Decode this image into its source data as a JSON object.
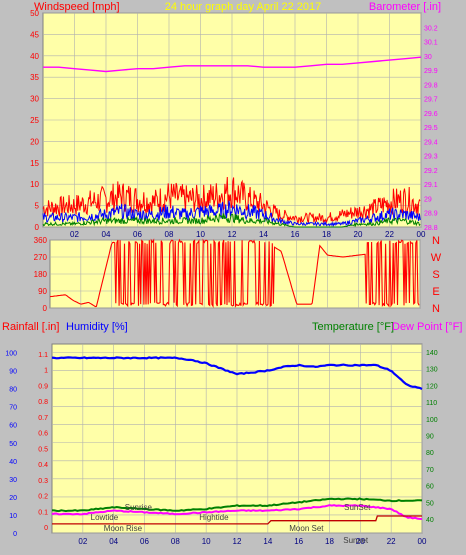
{
  "colors": {
    "background": "#c0c0c0",
    "plot_bg": "#ffffa8",
    "grid": "#b0b0b0",
    "red": "#ff0000",
    "darkred": "#c00000",
    "blue": "#0000ff",
    "green": "#008000",
    "magenta": "#ff00ff",
    "tide": "#808080",
    "title_yellow": "#ffff00"
  },
  "chart_data": [
    {
      "type": "line",
      "id": "wind_baro",
      "title": "24 hour graph day   April 22 2017",
      "ylabel_left": "Windspeed [mph]",
      "ylabel_right": "Barometer [.in]",
      "x_ticks": [
        "02",
        "04",
        "06",
        "08",
        "10",
        "12",
        "14",
        "16",
        "18",
        "20",
        "22",
        "00"
      ],
      "xlim": [
        0,
        24
      ],
      "ylim_left": [
        0,
        50
      ],
      "y_ticks_left": [
        "0",
        "5",
        "10",
        "15",
        "20",
        "25",
        "30",
        "35",
        "40",
        "45",
        "50"
      ],
      "ylim_right": [
        28.8,
        30.3
      ],
      "y_ticks_right": [
        "28.8",
        "28.9",
        "29",
        "29.1",
        "29.2",
        "29.3",
        "29.4",
        "29.5",
        "29.6",
        "29.7",
        "29.8",
        "29.9",
        "30",
        "30.1",
        "30.2"
      ],
      "grid": true,
      "series": [
        {
          "color_key": "magenta",
          "axis": "right",
          "x": [
            0,
            1,
            2,
            3,
            4,
            5,
            6,
            7,
            8,
            9,
            10,
            11,
            12,
            13,
            14,
            15,
            16,
            17,
            18,
            19,
            20,
            21,
            22,
            23,
            24
          ],
          "y": [
            29.92,
            29.92,
            29.91,
            29.9,
            29.89,
            29.9,
            29.91,
            29.91,
            29.92,
            29.93,
            29.93,
            29.93,
            29.93,
            29.93,
            29.92,
            29.92,
            29.92,
            29.93,
            29.94,
            29.94,
            29.95,
            29.96,
            29.97,
            29.98,
            29.99
          ]
        },
        {
          "color_key": "red",
          "axis": "left",
          "x": [
            0,
            2,
            4,
            5,
            6,
            7,
            8,
            9,
            10,
            11,
            12,
            13,
            14,
            15,
            16,
            17,
            18,
            19,
            20,
            21,
            22,
            23,
            24
          ],
          "y": [
            6,
            7,
            9,
            10,
            9,
            8,
            10,
            9,
            9,
            10,
            12,
            9,
            7,
            4,
            3,
            3,
            3,
            4,
            5,
            6,
            8,
            9,
            7
          ]
        },
        {
          "color_key": "blue",
          "axis": "left",
          "x": [
            0,
            2,
            4,
            5,
            6,
            7,
            8,
            9,
            10,
            11,
            12,
            13,
            14,
            15,
            16,
            17,
            18,
            19,
            20,
            21,
            22,
            23,
            24
          ],
          "y": [
            3,
            3,
            4,
            5,
            4,
            4,
            5,
            4,
            5,
            5,
            6,
            5,
            4,
            2,
            1,
            1,
            1,
            1,
            2,
            3,
            4,
            4,
            3
          ]
        },
        {
          "color_key": "green",
          "axis": "left",
          "x": [
            0,
            2,
            4,
            5,
            6,
            7,
            8,
            9,
            10,
            11,
            12,
            13,
            14,
            15,
            16,
            17,
            18,
            19,
            20,
            21,
            22,
            23,
            24
          ],
          "y": [
            1,
            1,
            2,
            2,
            2,
            2,
            2,
            2,
            2,
            3,
            3,
            2,
            2,
            1,
            0,
            0,
            0,
            0,
            1,
            1,
            2,
            2,
            1
          ]
        }
      ]
    },
    {
      "type": "line",
      "id": "wind_dir",
      "ylim": [
        0,
        360
      ],
      "y_ticks": [
        "0",
        "90",
        "180",
        "270",
        "360"
      ],
      "direction_labels": [
        "N",
        "W",
        "S",
        "E",
        "N"
      ],
      "series": [
        {
          "color_key": "red",
          "x": [
            0,
            1,
            1.5,
            2,
            2.5,
            3,
            4,
            5,
            6,
            7,
            8,
            9,
            10,
            11,
            12,
            13,
            14,
            15,
            16,
            17,
            17.5,
            18,
            19,
            20,
            21,
            21.5,
            22,
            23,
            24
          ],
          "y": [
            60,
            70,
            40,
            20,
            30,
            5,
            340,
            20,
            350,
            10,
            340,
            15,
            355,
            30,
            340,
            20,
            350,
            300,
            20,
            20,
            330,
            280,
            270,
            280,
            290,
            10,
            350,
            340,
            350
          ]
        }
      ]
    },
    {
      "type": "line",
      "id": "hum_temp",
      "ylabel_left1": "Rainfall [.in]",
      "ylabel_left2": "Humidity [%]",
      "ylabel_right1": "Temperature [°F]",
      "ylabel_right2": "Dew Point [°F]",
      "x_ticks": [
        "02",
        "04",
        "06",
        "08",
        "10",
        "12",
        "14",
        "16",
        "18",
        "20",
        "22",
        "00"
      ],
      "humidity_ticks": [
        "0",
        "10",
        "20",
        "30",
        "40",
        "50",
        "60",
        "70",
        "80",
        "90",
        "100"
      ],
      "rain_ticks": [
        "0",
        "0.1",
        "0.2",
        "0.3",
        "0.4",
        "0.5",
        "0.6",
        "0.7",
        "0.8",
        "0.9",
        "1",
        "1.1"
      ],
      "temp_ticks": [
        "40",
        "50",
        "60",
        "70",
        "80",
        "90",
        "100",
        "110",
        "120",
        "130",
        "140"
      ],
      "ylim_humidity": [
        0,
        100
      ],
      "ylim_temp": [
        30,
        150
      ],
      "events": [
        {
          "label": "Moon Rise",
          "x": 4.6,
          "row": 3
        },
        {
          "label": "Lowtide",
          "x": 3.4,
          "row": 2
        },
        {
          "label": "Sunrise",
          "x": 5.6,
          "row": 1
        },
        {
          "label": "Hightide",
          "x": 10.5,
          "row": 2
        },
        {
          "label": "Moon Set",
          "x": 16.5,
          "row": 3
        },
        {
          "label": "SunSet",
          "x": 19.8,
          "row": 1
        },
        {
          "label": "Sunset",
          "x": 19.7,
          "row": 4
        }
      ],
      "series": [
        {
          "color_key": "blue",
          "axis": "humidity",
          "x": [
            0,
            1,
            2,
            3,
            4,
            5,
            6,
            7,
            8,
            9,
            10,
            11,
            12,
            13,
            14,
            15,
            16,
            17,
            18,
            19,
            20,
            21,
            22,
            23,
            24
          ],
          "y": [
            97,
            97,
            97,
            97,
            97,
            97,
            97,
            97,
            97,
            96,
            94,
            91,
            88,
            89,
            90,
            92,
            93,
            92,
            93,
            93,
            93,
            93,
            90,
            82,
            80
          ]
        },
        {
          "color_key": "green",
          "axis": "temp",
          "x": [
            0,
            2,
            4,
            6,
            8,
            10,
            12,
            14,
            16,
            18,
            20,
            22,
            24
          ],
          "y": [
            45,
            45,
            47,
            46,
            45,
            46,
            48,
            48,
            50,
            52,
            52,
            51,
            51
          ]
        },
        {
          "color_key": "magenta",
          "axis": "temp",
          "x": [
            0,
            2,
            4,
            6,
            8,
            10,
            12,
            14,
            16,
            18,
            20,
            22,
            23,
            24
          ],
          "y": [
            43,
            43,
            45,
            44,
            43,
            44,
            45,
            45,
            46,
            48,
            48,
            46,
            41,
            40
          ]
        },
        {
          "color_key": "darkred",
          "axis": "rain",
          "x": [
            0,
            14,
            14.2,
            21,
            21.1,
            24
          ],
          "y": [
            0.02,
            0.02,
            0.04,
            0.04,
            0.07,
            0.07
          ]
        }
      ]
    }
  ]
}
